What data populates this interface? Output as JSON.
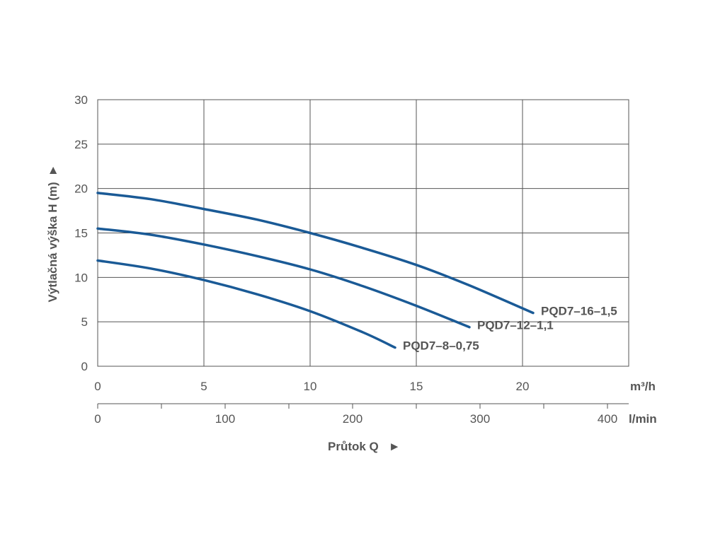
{
  "colors": {
    "curve": "#1a5a96",
    "grid": "#555555",
    "text": "#555555"
  },
  "chart_data": {
    "type": "line",
    "ylabel": "Výtlačná výška H (m)",
    "ylabel_arrow": "►",
    "xlabel": "Průtok Q",
    "xlabel_arrow": "►",
    "x_unit": "m³/h",
    "x2_unit": "l/min",
    "xlim": [
      0,
      25
    ],
    "ylim": [
      0,
      30
    ],
    "x2lim": [
      0,
      416.67
    ],
    "x_ticks": [
      "0",
      "5",
      "10",
      "15",
      "20"
    ],
    "y_ticks": [
      "0",
      "5",
      "10",
      "15",
      "20",
      "25",
      "30"
    ],
    "x2_ticks": [
      "0",
      "100",
      "200",
      "300",
      "400"
    ],
    "x2_minor_ticks": [
      50,
      150,
      250,
      350
    ],
    "grid": true,
    "series": [
      {
        "name": "PQD7–16–1,5",
        "x": [
          0,
          2.5,
          5,
          7.5,
          10,
          12.5,
          15,
          17.5,
          20.5
        ],
        "y": [
          19.5,
          18.8,
          17.7,
          16.5,
          15.0,
          13.3,
          11.4,
          9.1,
          6.0
        ]
      },
      {
        "name": "PQD7–12–1,1",
        "x": [
          0,
          2.5,
          5,
          7.5,
          10,
          12.5,
          15,
          17.5
        ],
        "y": [
          15.5,
          14.8,
          13.7,
          12.4,
          10.9,
          9.0,
          6.8,
          4.4
        ]
      },
      {
        "name": "PQD7–8–0,75",
        "x": [
          0,
          2.5,
          5,
          7.5,
          10,
          12.5,
          14
        ],
        "y": [
          11.9,
          11.0,
          9.7,
          8.1,
          6.2,
          3.8,
          2.1
        ]
      }
    ]
  }
}
